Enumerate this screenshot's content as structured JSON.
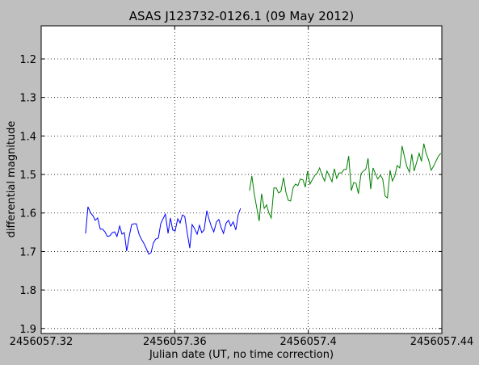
{
  "chart_data": {
    "type": "line",
    "title": "ASAS J123732-0126.1 (09 May 2012)",
    "x_label": "Julian date (UT, no time correction)",
    "y_label": "differential magnitude",
    "xlim": [
      2456057.32,
      2456057.44
    ],
    "xticks": [
      2456057.32,
      2456057.36,
      2456057.4,
      2456057.44
    ],
    "ylim": [
      1.913,
      1.114
    ],
    "yticks": [
      1.2,
      1.3,
      1.4,
      1.5,
      1.6,
      1.7,
      1.8,
      1.9
    ],
    "grid": true,
    "series": [
      {
        "color": "#0000ff",
        "x": [
          2456057.3333,
          2456057.334,
          2456057.3348,
          2456057.3355,
          2456057.3362,
          2456057.3369,
          2456057.3377,
          2456057.3384,
          2456057.3391,
          2456057.3398,
          2456057.3406,
          2456057.3413,
          2456057.342,
          2456057.3427,
          2456057.3435,
          2456057.3442,
          2456057.3449,
          2456057.3456,
          2456057.3464,
          2456057.3471,
          2456057.3478,
          2456057.3485,
          2456057.3493,
          2456057.35,
          2456057.3507,
          2456057.3514,
          2456057.3522,
          2456057.3529,
          2456057.3536,
          2456057.3543,
          2456057.3551,
          2456057.3558,
          2456057.3565,
          2456057.3572,
          2456057.358,
          2456057.3587,
          2456057.3594,
          2456057.3601,
          2456057.3609,
          2456057.3616,
          2456057.3623,
          2456057.363,
          2456057.3638,
          2456057.3645,
          2456057.3652,
          2456057.3659,
          2456057.3667,
          2456057.3674,
          2456057.3681,
          2456057.3688,
          2456057.3696,
          2456057.3703,
          2456057.371,
          2456057.3717,
          2456057.3725,
          2456057.3732,
          2456057.3739,
          2456057.3746,
          2456057.3754,
          2456057.3761,
          2456057.3768,
          2456057.3775,
          2456057.3783,
          2456057.379,
          2456057.3797
        ],
        "values": [
          1.653,
          1.584,
          1.6,
          1.607,
          1.619,
          1.613,
          1.642,
          1.642,
          1.649,
          1.661,
          1.659,
          1.651,
          1.649,
          1.661,
          1.634,
          1.655,
          1.651,
          1.699,
          1.659,
          1.63,
          1.628,
          1.628,
          1.655,
          1.668,
          1.678,
          1.691,
          1.707,
          1.703,
          1.678,
          1.668,
          1.665,
          1.628,
          1.615,
          1.603,
          1.653,
          1.613,
          1.644,
          1.647,
          1.615,
          1.626,
          1.605,
          1.609,
          1.655,
          1.691,
          1.63,
          1.64,
          1.655,
          1.632,
          1.651,
          1.644,
          1.594,
          1.617,
          1.636,
          1.649,
          1.623,
          1.617,
          1.638,
          1.653,
          1.626,
          1.619,
          1.634,
          1.623,
          1.644,
          1.605,
          1.588
        ]
      },
      {
        "color": "#008000",
        "x": [
          2456057.3824,
          2456057.3831,
          2456057.3838,
          2456057.3846,
          2456057.3853,
          2456057.386,
          2456057.3868,
          2456057.3875,
          2456057.3882,
          2456057.3889,
          2456057.3897,
          2456057.3904,
          2456057.3911,
          2456057.3918,
          2456057.3926,
          2456057.3933,
          2456057.394,
          2456057.3947,
          2456057.3955,
          2456057.3962,
          2456057.3969,
          2456057.3976,
          2456057.3984,
          2456057.3991,
          2456057.3998,
          2456057.4005,
          2456057.4013,
          2456057.402,
          2456057.4027,
          2456057.4034,
          2456057.4042,
          2456057.4049,
          2456057.4056,
          2456057.4063,
          2456057.4071,
          2456057.4078,
          2456057.4085,
          2456057.4092,
          2456057.41,
          2456057.4107,
          2456057.4114,
          2456057.4121,
          2456057.4129,
          2456057.4136,
          2456057.4143,
          2456057.415,
          2456057.4158,
          2456057.4165,
          2456057.4172,
          2456057.4179,
          2456057.4187,
          2456057.4194,
          2456057.4201,
          2456057.4208,
          2456057.4216,
          2456057.4223,
          2456057.423,
          2456057.4237,
          2456057.4245,
          2456057.4252,
          2456057.4259,
          2456057.4266,
          2456057.4274,
          2456057.4281,
          2456057.4288,
          2456057.4295,
          2456057.4303,
          2456057.431,
          2456057.4317,
          2456057.4324,
          2456057.4332,
          2456057.4339,
          2456057.4346,
          2456057.4353,
          2456057.4361,
          2456057.4368,
          2456057.4375,
          2456057.4382,
          2456057.439,
          2456057.4397
        ],
        "values": [
          1.542,
          1.504,
          1.55,
          1.588,
          1.621,
          1.55,
          1.588,
          1.579,
          1.6,
          1.613,
          1.535,
          1.535,
          1.548,
          1.544,
          1.508,
          1.546,
          1.567,
          1.569,
          1.533,
          1.525,
          1.529,
          1.512,
          1.514,
          1.533,
          1.491,
          1.525,
          1.512,
          1.502,
          1.496,
          1.483,
          1.504,
          1.517,
          1.491,
          1.504,
          1.519,
          1.485,
          1.51,
          1.496,
          1.496,
          1.487,
          1.487,
          1.452,
          1.542,
          1.521,
          1.523,
          1.55,
          1.498,
          1.491,
          1.487,
          1.458,
          1.538,
          1.483,
          1.498,
          1.512,
          1.502,
          1.512,
          1.556,
          1.561,
          1.489,
          1.517,
          1.504,
          1.477,
          1.483,
          1.426,
          1.454,
          1.479,
          1.494,
          1.447,
          1.491,
          1.47,
          1.445,
          1.466,
          1.42,
          1.445,
          1.464,
          1.489,
          1.479,
          1.466,
          1.452,
          1.445
        ]
      }
    ]
  }
}
